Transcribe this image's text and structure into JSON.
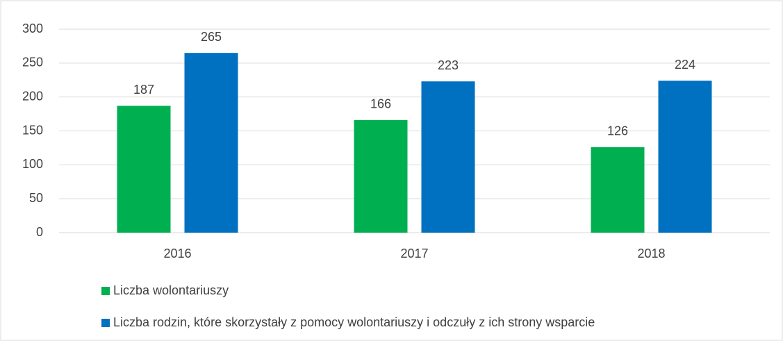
{
  "chart_data": {
    "type": "bar",
    "categories": [
      "2016",
      "2017",
      "2018"
    ],
    "series": [
      {
        "name": "Liczba wolontariuszy",
        "color": "#00b050",
        "values": [
          187,
          166,
          126
        ]
      },
      {
        "name": "Liczba rodzin, które skorzystały z pomocy wolontariuszy i odczuły z ich strony wsparcie",
        "color": "#0070c0",
        "values": [
          265,
          223,
          224
        ]
      }
    ],
    "ylim": [
      0,
      300
    ],
    "yticks": [
      0,
      50,
      100,
      150,
      200,
      250,
      300
    ],
    "grid": true
  }
}
